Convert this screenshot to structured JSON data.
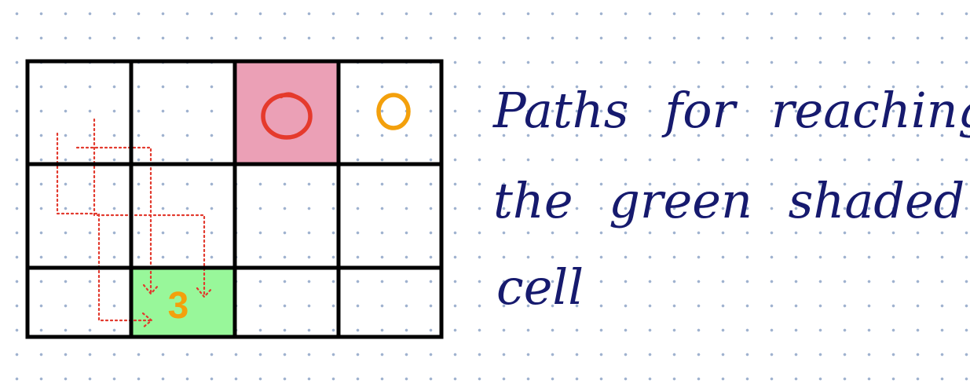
{
  "grid": {
    "rows": 3,
    "cols": 4,
    "colors": {
      "line": "#000000",
      "target_fill": "#98f79a",
      "start_fill": "#eba0b6",
      "path": "#e2392d",
      "start_mark": "#e53a2c",
      "orange": "#f3a00c"
    },
    "cells": [
      {
        "row": 0,
        "col": 2,
        "fill": "start",
        "mark": "circle-red"
      },
      {
        "row": 0,
        "col": 3,
        "fill": "none",
        "mark": "circle-orange"
      },
      {
        "row": 2,
        "col": 1,
        "fill": "target",
        "label": "3"
      }
    ]
  },
  "note": {
    "lines": [
      "Paths for reaching",
      "the green shaded",
      "cell"
    ],
    "color": "#161a6e"
  }
}
